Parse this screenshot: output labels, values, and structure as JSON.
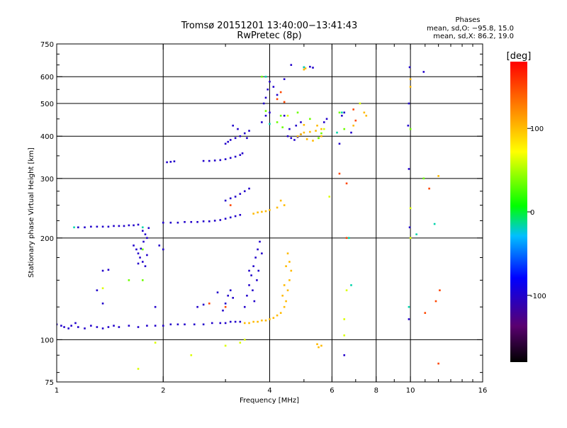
{
  "chart_data": {
    "type": "scatter",
    "title": "Tromsø 20151201 13:40:00−13:41:43",
    "subtitle": "RwPretec (8p)",
    "xlabel": "Frequency [MHz]",
    "ylabel": "Stationary phase Virtual Height [km]",
    "x_scale": "log",
    "y_scale": "log",
    "xlim": [
      1,
      16
    ],
    "ylim": [
      75,
      750
    ],
    "x_ticks": [
      1,
      2,
      4,
      6,
      8,
      10,
      16
    ],
    "y_ticks": [
      75,
      100,
      200,
      300,
      400,
      500,
      600,
      750
    ],
    "x_major_lines": [
      2,
      4,
      6,
      8,
      10
    ],
    "y_major_lines": [
      100,
      200,
      300,
      400,
      500,
      600
    ],
    "phase_info": {
      "heading": "Phases",
      "line_o": "mean, sd,O: −95.8, 15.0",
      "line_x": "mean, sd,X:  86.2, 19.0"
    },
    "colorbar": {
      "label": "[deg]",
      "range": [
        -180,
        180
      ],
      "ticks": [
        100,
        0,
        -100
      ]
    },
    "series": [
      {
        "phase": -100,
        "points": [
          [
            1.0,
            111
          ],
          [
            1.03,
            110
          ],
          [
            1.05,
            109
          ],
          [
            1.08,
            108
          ],
          [
            1.1,
            110
          ],
          [
            1.13,
            112
          ],
          [
            1.15,
            109
          ],
          [
            1.2,
            108
          ],
          [
            1.25,
            110
          ],
          [
            1.3,
            109
          ],
          [
            1.35,
            108
          ],
          [
            1.4,
            109
          ],
          [
            1.45,
            110
          ],
          [
            1.5,
            109
          ],
          [
            1.6,
            110
          ],
          [
            1.7,
            109
          ],
          [
            1.8,
            110
          ],
          [
            1.9,
            110
          ],
          [
            2.0,
            110
          ],
          [
            2.1,
            111
          ],
          [
            2.2,
            111
          ],
          [
            2.3,
            111
          ],
          [
            2.45,
            111
          ],
          [
            2.6,
            111
          ],
          [
            2.75,
            112
          ],
          [
            2.9,
            112
          ],
          [
            3.0,
            112
          ],
          [
            3.1,
            113
          ],
          [
            3.2,
            113
          ],
          [
            3.3,
            113
          ],
          [
            1.15,
            215
          ],
          [
            1.2,
            215
          ],
          [
            1.25,
            216
          ],
          [
            1.3,
            216
          ],
          [
            1.35,
            216
          ],
          [
            1.4,
            216
          ],
          [
            1.45,
            217
          ],
          [
            1.5,
            217
          ],
          [
            1.55,
            217
          ],
          [
            1.6,
            218
          ],
          [
            1.65,
            218
          ],
          [
            1.7,
            219
          ],
          [
            2.0,
            222
          ],
          [
            2.1,
            222
          ],
          [
            2.2,
            222
          ],
          [
            2.3,
            223
          ],
          [
            2.4,
            223
          ],
          [
            2.5,
            223
          ],
          [
            2.6,
            224
          ],
          [
            2.7,
            224
          ],
          [
            2.8,
            225
          ],
          [
            2.9,
            226
          ],
          [
            3.0,
            228
          ],
          [
            3.1,
            230
          ],
          [
            3.2,
            232
          ],
          [
            3.3,
            234
          ],
          [
            1.75,
            210
          ],
          [
            1.78,
            205
          ],
          [
            1.8,
            200
          ],
          [
            1.82,
            214
          ],
          [
            1.76,
            195
          ],
          [
            1.65,
            190
          ],
          [
            1.68,
            185
          ],
          [
            1.7,
            180
          ],
          [
            1.72,
            175
          ],
          [
            1.75,
            170
          ],
          [
            1.78,
            165
          ],
          [
            1.8,
            178
          ],
          [
            1.7,
            168
          ],
          [
            1.73,
            186
          ],
          [
            1.35,
            160
          ],
          [
            1.4,
            161
          ],
          [
            1.3,
            140
          ],
          [
            1.95,
            190
          ],
          [
            2.0,
            185
          ],
          [
            1.35,
            128
          ],
          [
            1.9,
            125
          ],
          [
            2.05,
            335
          ],
          [
            2.1,
            336
          ],
          [
            2.15,
            337
          ],
          [
            2.6,
            338
          ],
          [
            2.7,
            338
          ],
          [
            2.8,
            339
          ],
          [
            2.9,
            340
          ],
          [
            3.0,
            342
          ],
          [
            3.1,
            345
          ],
          [
            3.2,
            348
          ],
          [
            3.3,
            352
          ],
          [
            3.35,
            356
          ],
          [
            3.0,
            380
          ],
          [
            3.05,
            385
          ],
          [
            3.1,
            390
          ],
          [
            3.2,
            395
          ],
          [
            3.3,
            400
          ],
          [
            3.4,
            408
          ],
          [
            3.5,
            415
          ],
          [
            3.15,
            430
          ],
          [
            3.25,
            420
          ],
          [
            3.45,
            395
          ],
          [
            3.0,
            258
          ],
          [
            3.1,
            262
          ],
          [
            3.2,
            265
          ],
          [
            3.3,
            270
          ],
          [
            3.4,
            275
          ],
          [
            3.5,
            280
          ],
          [
            2.95,
            122
          ],
          [
            3.0,
            128
          ],
          [
            3.05,
            135
          ],
          [
            3.1,
            140
          ],
          [
            3.15,
            133
          ],
          [
            2.85,
            138
          ],
          [
            2.6,
            127
          ],
          [
            2.5,
            125
          ],
          [
            3.4,
            125
          ],
          [
            3.45,
            135
          ],
          [
            3.5,
            145
          ],
          [
            3.55,
            155
          ],
          [
            3.6,
            165
          ],
          [
            3.65,
            175
          ],
          [
            3.7,
            185
          ],
          [
            3.75,
            195
          ],
          [
            3.8,
            180
          ],
          [
            3.72,
            160
          ],
          [
            3.68,
            150
          ],
          [
            3.58,
            140
          ],
          [
            3.62,
            130
          ],
          [
            3.5,
            160
          ],
          [
            3.85,
            500
          ],
          [
            3.9,
            520
          ],
          [
            3.95,
            550
          ],
          [
            4.0,
            580
          ],
          [
            4.1,
            560
          ],
          [
            4.2,
            530
          ],
          [
            3.9,
            460
          ],
          [
            3.8,
            440
          ],
          [
            4.0,
            470
          ],
          [
            4.5,
            400
          ],
          [
            4.6,
            395
          ],
          [
            4.7,
            390
          ],
          [
            4.8,
            398
          ],
          [
            4.9,
            405
          ],
          [
            4.55,
            420
          ],
          [
            4.75,
            430
          ],
          [
            4.4,
            460
          ],
          [
            4.9,
            440
          ],
          [
            5.0,
            640
          ],
          [
            5.2,
            642
          ],
          [
            5.3,
            638
          ],
          [
            4.4,
            590
          ],
          [
            4.6,
            650
          ],
          [
            5.7,
            440
          ],
          [
            5.8,
            450
          ],
          [
            6.4,
            460
          ],
          [
            6.5,
            470
          ],
          [
            6.3,
            380
          ],
          [
            6.8,
            410
          ],
          [
            6.5,
            90
          ],
          [
            9.95,
            640
          ],
          [
            9.9,
            500
          ],
          [
            9.85,
            430
          ],
          [
            10.9,
            620
          ],
          [
            9.9,
            320
          ],
          [
            9.95,
            215
          ],
          [
            9.9,
            115
          ]
        ]
      },
      {
        "phase": 100,
        "points": [
          [
            3.4,
            112
          ],
          [
            3.5,
            112
          ],
          [
            3.6,
            113
          ],
          [
            3.7,
            113
          ],
          [
            3.8,
            114
          ],
          [
            3.9,
            114
          ],
          [
            4.0,
            115
          ],
          [
            4.1,
            116
          ],
          [
            4.2,
            118
          ],
          [
            4.3,
            120
          ],
          [
            4.4,
            125
          ],
          [
            4.45,
            130
          ],
          [
            4.5,
            140
          ],
          [
            4.55,
            150
          ],
          [
            4.6,
            160
          ],
          [
            4.55,
            170
          ],
          [
            4.5,
            180
          ],
          [
            4.45,
            165
          ],
          [
            4.4,
            145
          ],
          [
            4.35,
            135
          ],
          [
            3.6,
            236
          ],
          [
            3.7,
            238
          ],
          [
            3.8,
            239
          ],
          [
            3.9,
            240
          ],
          [
            4.0,
            242
          ],
          [
            4.2,
            246
          ],
          [
            4.4,
            250
          ],
          [
            4.3,
            258
          ],
          [
            4.8,
            400
          ],
          [
            4.9,
            405
          ],
          [
            5.0,
            410
          ],
          [
            5.2,
            412
          ],
          [
            5.4,
            415
          ],
          [
            5.5,
            395
          ],
          [
            5.6,
            400
          ],
          [
            5.3,
            388
          ],
          [
            5.1,
            392
          ],
          [
            5.45,
            430
          ],
          [
            5.0,
            432
          ],
          [
            5.6,
            420
          ],
          [
            5.0,
            630
          ],
          [
            5.05,
            635
          ],
          [
            5.5,
            95
          ],
          [
            5.45,
            97
          ],
          [
            5.6,
            96
          ],
          [
            7.5,
            460
          ],
          [
            7.4,
            470
          ],
          [
            6.9,
            430
          ],
          [
            10.0,
            560
          ],
          [
            10.0,
            590
          ],
          [
            12.0,
            305
          ]
        ]
      },
      {
        "phase": 30,
        "points": [
          [
            4.2,
            440
          ],
          [
            4.3,
            460
          ],
          [
            4.35,
            425
          ],
          [
            4.8,
            470
          ],
          [
            5.2,
            450
          ],
          [
            5.5,
            395
          ],
          [
            5.6,
            408
          ],
          [
            6.3,
            470
          ],
          [
            6.5,
            420
          ],
          [
            10.0,
            420
          ],
          [
            10.9,
            300
          ],
          [
            1.6,
            150
          ],
          [
            1.75,
            150
          ],
          [
            1.75,
            185
          ],
          [
            3.8,
            600
          ],
          [
            3.9,
            475
          ]
        ]
      },
      {
        "phase": 150,
        "points": [
          [
            6.3,
            310
          ],
          [
            6.6,
            200
          ],
          [
            6.6,
            290
          ],
          [
            4.4,
            505
          ],
          [
            4.3,
            540
          ],
          [
            4.2,
            515
          ],
          [
            11.8,
            130
          ],
          [
            12.1,
            140
          ],
          [
            12.0,
            85
          ],
          [
            11.0,
            120
          ],
          [
            11.3,
            280
          ],
          [
            3.1,
            250
          ],
          [
            2.7,
            128
          ],
          [
            3.0,
            125
          ],
          [
            7.0,
            445
          ],
          [
            6.9,
            480
          ]
        ]
      },
      {
        "phase": 60,
        "points": [
          [
            1.7,
            82
          ],
          [
            2.4,
            90
          ],
          [
            3.0,
            96
          ],
          [
            3.3,
            98
          ],
          [
            6.5,
            115
          ],
          [
            6.5,
            103
          ],
          [
            6.6,
            140
          ],
          [
            7.2,
            500
          ],
          [
            10.0,
            245
          ],
          [
            10.0,
            200
          ],
          [
            1.35,
            142
          ],
          [
            1.9,
            98
          ],
          [
            4.5,
            460
          ],
          [
            5.7,
            420
          ],
          [
            5.9,
            265
          ],
          [
            3.4,
            100
          ]
        ]
      },
      {
        "phase": -20,
        "points": [
          [
            1.12,
            215
          ],
          [
            1.75,
            215
          ],
          [
            3.9,
            600
          ],
          [
            4.0,
            435
          ],
          [
            5.0,
            640
          ],
          [
            6.2,
            410
          ],
          [
            6.7,
            200
          ],
          [
            6.8,
            145
          ],
          [
            10.4,
            205
          ],
          [
            11.7,
            220
          ],
          [
            6.4,
            470
          ],
          [
            9.9,
            125
          ]
        ]
      }
    ]
  }
}
